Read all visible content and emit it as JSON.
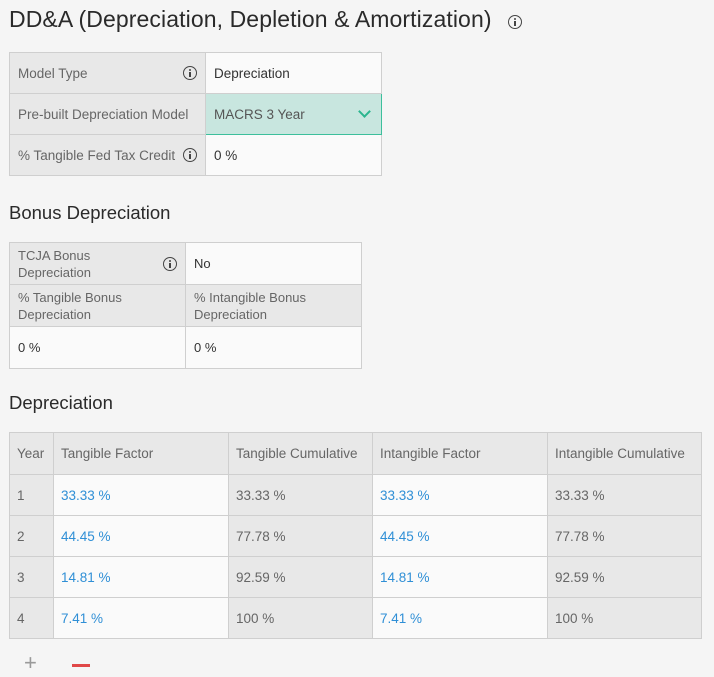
{
  "page": {
    "title": "DD&A (Depreciation, Depletion & Amortization)",
    "title_icon": "info-icon"
  },
  "model": {
    "rows": [
      {
        "label": "Model Type",
        "value": "Depreciation"
      },
      {
        "label": "Pre-built Depreciation Model",
        "value": "MACRS 3 Year"
      },
      {
        "label": "% Tangible Fed Tax Credit",
        "value": "0 %"
      }
    ]
  },
  "bonus": {
    "heading": "Bonus Depreciation",
    "tcja_label": "TCJA Bonus Depreciation",
    "tcja_value": "No",
    "tangible_label": "% Tangible Bonus Depreciation",
    "intangible_label": "% Intangible Bonus Depreciation",
    "tangible_value": "0 %",
    "intangible_value": "0 %"
  },
  "depreciation": {
    "heading": "Depreciation",
    "columns": [
      "Year",
      "Tangible Factor",
      "Tangible Cumulative",
      "Intangible Factor",
      "Intangible Cumulative"
    ],
    "rows": [
      {
        "year": "1",
        "tangible_factor": "33.33 %",
        "tangible_cumulative": "33.33 %",
        "intangible_factor": "33.33 %",
        "intangible_cumulative": "33.33 %"
      },
      {
        "year": "2",
        "tangible_factor": "44.45 %",
        "tangible_cumulative": "77.78 %",
        "intangible_factor": "44.45 %",
        "intangible_cumulative": "77.78 %"
      },
      {
        "year": "3",
        "tangible_factor": "14.81 %",
        "tangible_cumulative": "92.59 %",
        "intangible_factor": "14.81 %",
        "intangible_cumulative": "92.59 %"
      },
      {
        "year": "4",
        "tangible_factor": "7.41 %",
        "tangible_cumulative": "100 %",
        "intangible_factor": "7.41 %",
        "intangible_cumulative": "100 %"
      }
    ]
  },
  "controls": {
    "add_label": "+",
    "colors": {
      "accent": "#3dbf9c",
      "link": "#2f8fd6",
      "remove": "#e04848"
    }
  }
}
